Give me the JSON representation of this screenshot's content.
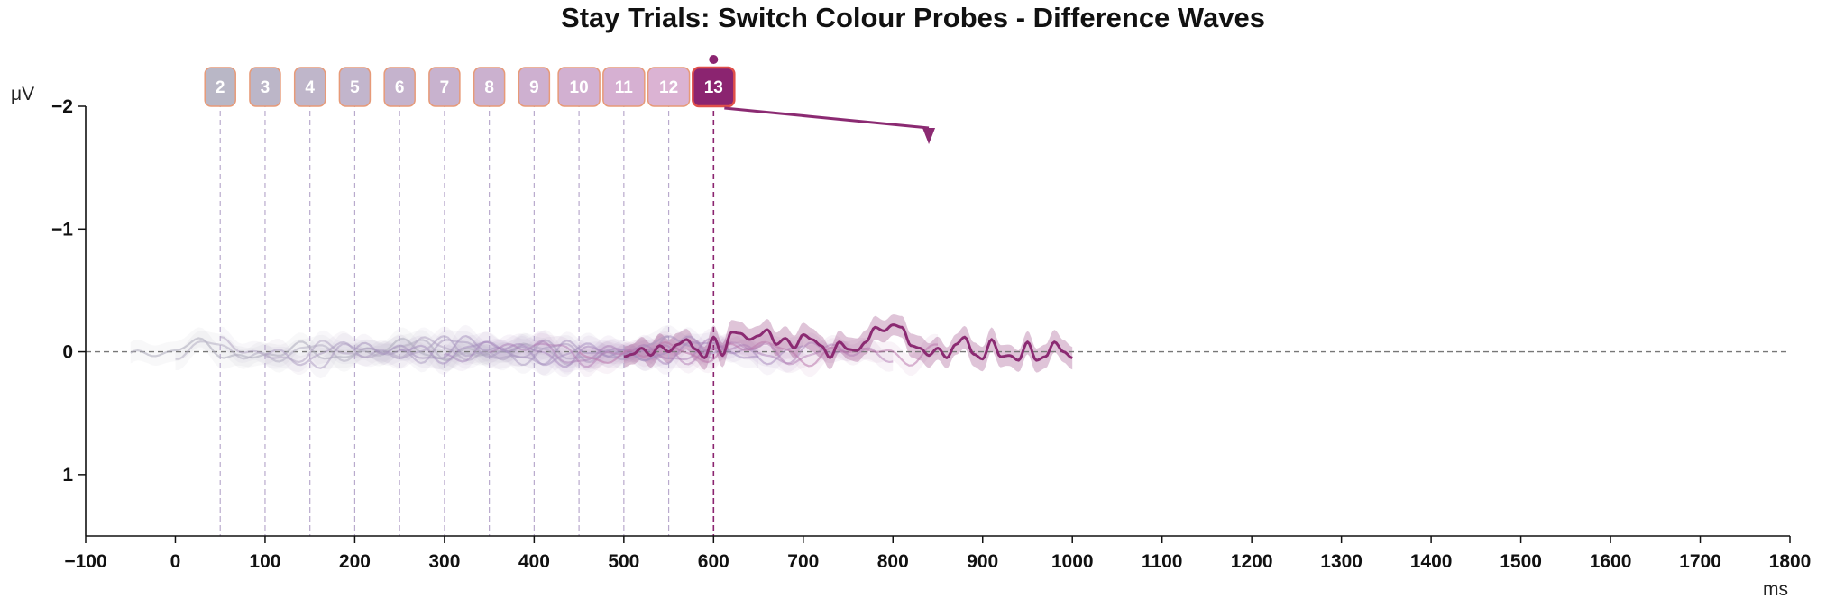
{
  "chart_data": {
    "type": "line",
    "title": "Stay Trials: Switch Colour Probes - Difference Waves",
    "xlabel": "ms",
    "ylabel": "μV",
    "xlim": [
      -100,
      1800
    ],
    "ylim": [
      1.5,
      -2
    ],
    "y_inverted": true,
    "x_ticks": [
      -100,
      0,
      100,
      200,
      300,
      400,
      500,
      600,
      700,
      800,
      900,
      1000,
      1100,
      1200,
      1300,
      1400,
      1500,
      1600,
      1700,
      1800
    ],
    "y_ticks": [
      -2,
      -1,
      0,
      1
    ],
    "x_tick_labels": [
      "−100",
      "0",
      "100",
      "200",
      "300",
      "400",
      "500",
      "600",
      "700",
      "800",
      "900",
      "1000",
      "1100",
      "1200",
      "1300",
      "1400",
      "1500",
      "1600",
      "1700",
      "1800"
    ],
    "y_tick_labels": [
      "−2",
      "−1",
      "0",
      "1"
    ],
    "zero_line": true,
    "grid": false,
    "probes": [
      {
        "label": "2",
        "onset_ms": 50,
        "color": "#b9b7c6"
      },
      {
        "label": "3",
        "onset_ms": 100,
        "color": "#bcb6c8"
      },
      {
        "label": "4",
        "onset_ms": 150,
        "color": "#bfb6ca"
      },
      {
        "label": "5",
        "onset_ms": 200,
        "color": "#c2b5cc"
      },
      {
        "label": "6",
        "onset_ms": 250,
        "color": "#c5b3cd"
      },
      {
        "label": "7",
        "onset_ms": 300,
        "color": "#c8b2ce"
      },
      {
        "label": "8",
        "onset_ms": 350,
        "color": "#cbb1cf"
      },
      {
        "label": "9",
        "onset_ms": 400,
        "color": "#ceb0d0"
      },
      {
        "label": "10",
        "onset_ms": 450,
        "color": "#d2b0d1"
      },
      {
        "label": "11",
        "onset_ms": 500,
        "color": "#d6b0d2"
      },
      {
        "label": "12",
        "onset_ms": 550,
        "color": "#dbb3d3"
      },
      {
        "label": "13",
        "onset_ms": 600,
        "color": "#8b2470",
        "active": true
      }
    ],
    "active_series_color": "#8b2a72",
    "series_note_range_ms": [
      -50,
      1000
    ],
    "series": [
      {
        "label": "2",
        "x_start": -50,
        "x_end": 350,
        "color": "#b3b0c0",
        "opacity": 0.6,
        "amp": 0.09,
        "seed": 1
      },
      {
        "label": "3",
        "x_start": 0,
        "x_end": 400,
        "color": "#b5aec2",
        "opacity": 0.55,
        "amp": 0.09,
        "seed": 2
      },
      {
        "label": "4",
        "x_start": 50,
        "x_end": 450,
        "color": "#b4a8c4",
        "opacity": 0.55,
        "amp": 0.1,
        "seed": 3
      },
      {
        "label": "5",
        "x_start": 100,
        "x_end": 500,
        "color": "#aea0c2",
        "opacity": 0.55,
        "amp": 0.1,
        "seed": 4
      },
      {
        "label": "6",
        "x_start": 150,
        "x_end": 550,
        "color": "#a999c0",
        "opacity": 0.5,
        "amp": 0.11,
        "seed": 5
      },
      {
        "label": "7",
        "x_start": 200,
        "x_end": 600,
        "color": "#a592be",
        "opacity": 0.5,
        "amp": 0.11,
        "seed": 6
      },
      {
        "label": "8",
        "x_start": 250,
        "x_end": 650,
        "color": "#a48cbd",
        "opacity": 0.5,
        "amp": 0.1,
        "seed": 7
      },
      {
        "label": "9",
        "x_start": 300,
        "x_end": 700,
        "color": "#a585bb",
        "opacity": 0.5,
        "amp": 0.1,
        "seed": 8
      },
      {
        "label": "10",
        "x_start": 350,
        "x_end": 750,
        "color": "#ab7fb7",
        "opacity": 0.5,
        "amp": 0.1,
        "seed": 9
      },
      {
        "label": "11",
        "x_start": 400,
        "x_end": 800,
        "color": "#b27bb3",
        "opacity": 0.5,
        "amp": 0.1,
        "seed": 10
      },
      {
        "label": "12",
        "x_start": 450,
        "x_end": 850,
        "color": "#bb78ad",
        "opacity": 0.55,
        "amp": 0.1,
        "seed": 11
      },
      {
        "label": "13",
        "x_start": 500,
        "x_end": 1000,
        "color": "#8b2a72",
        "opacity": 1.0,
        "amp": 0.1,
        "seed": 12,
        "active": true
      }
    ],
    "active_points": [
      [
        500,
        0.04
      ],
      [
        510,
        0.02
      ],
      [
        520,
        -0.03
      ],
      [
        530,
        0.03
      ],
      [
        540,
        -0.05
      ],
      [
        550,
        0.0
      ],
      [
        560,
        -0.06
      ],
      [
        570,
        -0.1
      ],
      [
        580,
        -0.02
      ],
      [
        590,
        0.05
      ],
      [
        600,
        -0.12
      ],
      [
        610,
        0.03
      ],
      [
        620,
        -0.16
      ],
      [
        630,
        -0.15
      ],
      [
        640,
        -0.1
      ],
      [
        650,
        -0.13
      ],
      [
        660,
        -0.18
      ],
      [
        670,
        -0.06
      ],
      [
        680,
        -0.11
      ],
      [
        690,
        -0.03
      ],
      [
        700,
        -0.14
      ],
      [
        710,
        -0.1
      ],
      [
        720,
        -0.05
      ],
      [
        730,
        0.05
      ],
      [
        740,
        -0.08
      ],
      [
        750,
        -0.02
      ],
      [
        760,
        -0.01
      ],
      [
        770,
        -0.08
      ],
      [
        780,
        -0.2
      ],
      [
        790,
        -0.17
      ],
      [
        800,
        -0.22
      ],
      [
        810,
        -0.2
      ],
      [
        820,
        -0.05
      ],
      [
        830,
        -0.03
      ],
      [
        840,
        0.03
      ],
      [
        850,
        -0.03
      ],
      [
        860,
        0.05
      ],
      [
        870,
        -0.06
      ],
      [
        880,
        -0.12
      ],
      [
        890,
        0.02
      ],
      [
        900,
        0.06
      ],
      [
        910,
        -0.1
      ],
      [
        920,
        0.04
      ],
      [
        930,
        0.03
      ],
      [
        940,
        0.07
      ],
      [
        950,
        -0.08
      ],
      [
        960,
        0.07
      ],
      [
        970,
        0.04
      ],
      [
        980,
        -0.08
      ],
      [
        990,
        0.0
      ],
      [
        1000,
        0.05
      ]
    ]
  }
}
